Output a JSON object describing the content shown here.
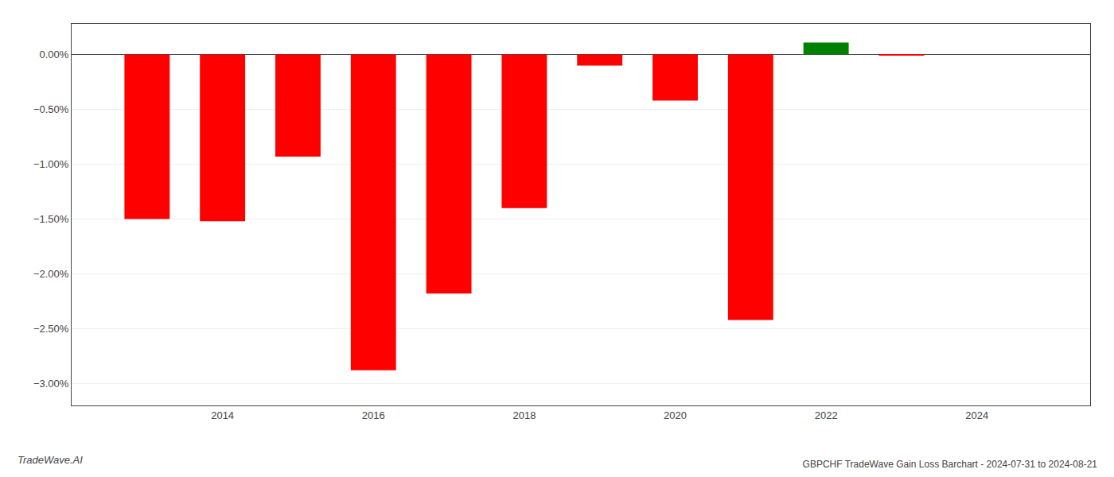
{
  "chart_data": {
    "type": "bar",
    "title": "GBPCHF TradeWave Gain Loss Barchart - 2024-07-31 to 2024-08-21",
    "annotations": [
      "TradeWave.AI"
    ],
    "x": [
      2013,
      2014,
      2015,
      2016,
      2017,
      2018,
      2019,
      2020,
      2021,
      2022,
      2023
    ],
    "values": [
      -1.5,
      -1.52,
      -0.93,
      -2.88,
      -2.18,
      -1.4,
      -0.1,
      -0.42,
      -2.42,
      0.11,
      -0.01
    ],
    "colors": [
      "#ff0000",
      "#ff0000",
      "#ff0000",
      "#ff0000",
      "#ff0000",
      "#ff0000",
      "#ff0000",
      "#ff0000",
      "#ff0000",
      "#008000",
      "#ff0000"
    ],
    "xlim": [
      2012.0,
      2025.5
    ],
    "xticks": [
      2014,
      2016,
      2018,
      2020,
      2022,
      2024
    ],
    "ylim": [
      -3.2,
      0.28
    ],
    "yticks": [
      {
        "value": 0.0,
        "label": "0.00%"
      },
      {
        "value": -0.5,
        "label": "−0.50%"
      },
      {
        "value": -1.0,
        "label": "−1.00%"
      },
      {
        "value": -1.5,
        "label": "−1.50%"
      },
      {
        "value": -2.0,
        "label": "−2.00%"
      },
      {
        "value": -2.5,
        "label": "−2.50%"
      },
      {
        "value": -3.0,
        "label": "−3.00%"
      }
    ],
    "grid": true
  }
}
